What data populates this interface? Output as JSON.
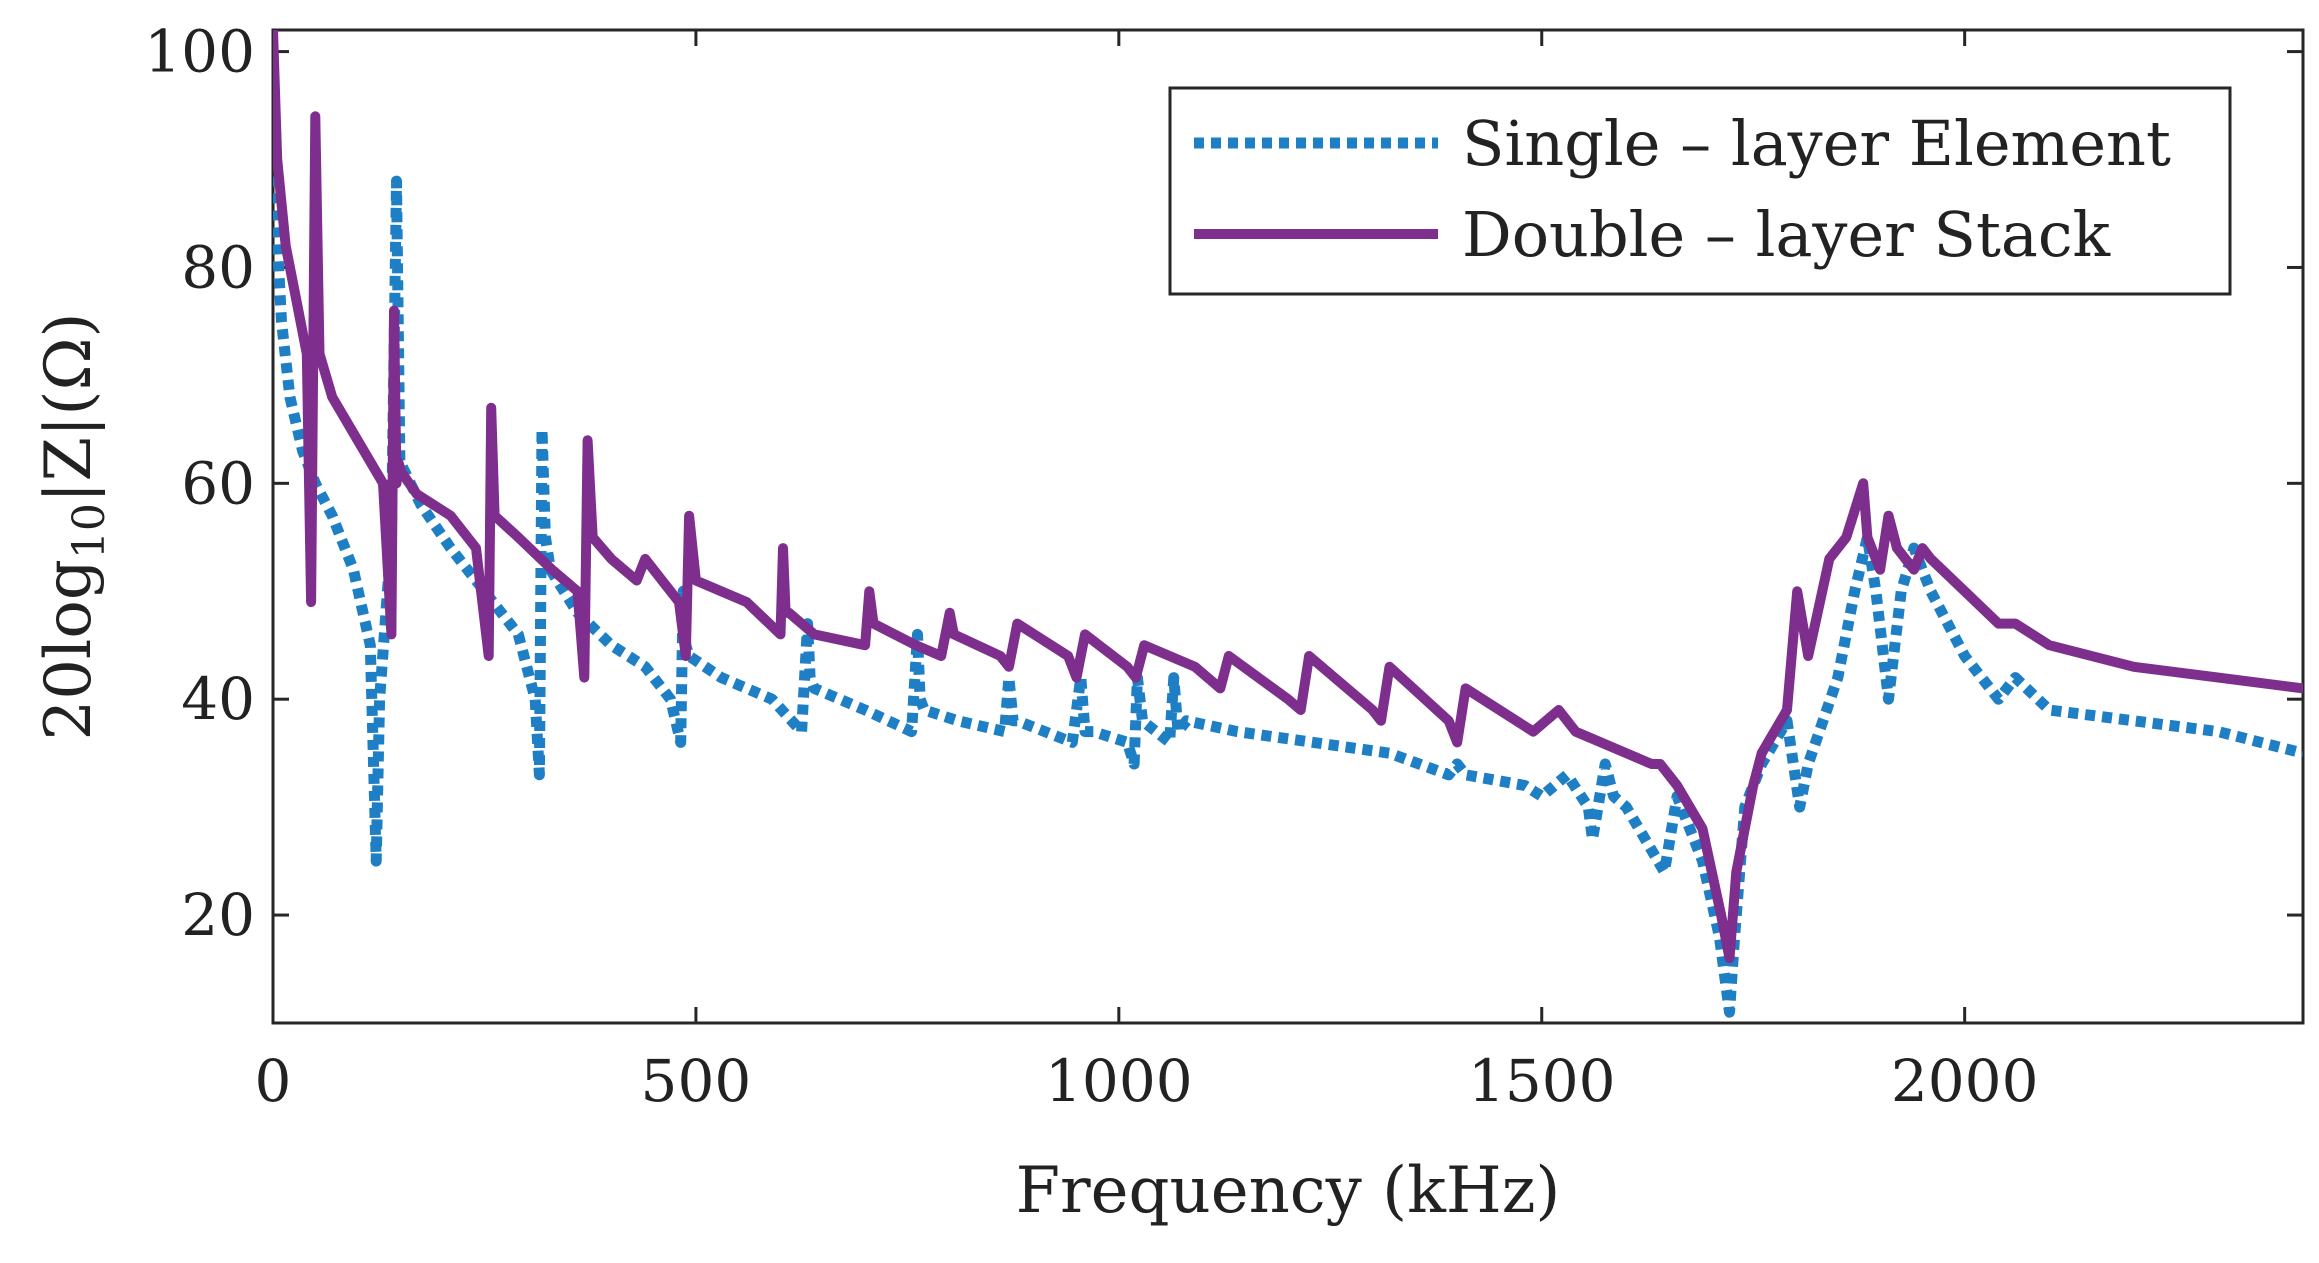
{
  "chart_data": {
    "type": "line",
    "title": "",
    "xlabel": "Frequency (kHz)",
    "ylabel": "20log10|Z|(Ω)",
    "ylabel_parts": {
      "pre": "20log",
      "sub": "10",
      "post": "|Z|(Ω)"
    },
    "xlim": [
      0,
      2400
    ],
    "ylim": [
      10,
      102
    ],
    "xticks": [
      0,
      500,
      1000,
      1500,
      2000
    ],
    "xtick_labels": [
      "0",
      "500",
      "1000",
      "1500",
      "2000"
    ],
    "yticks": [
      20,
      40,
      60,
      80,
      100
    ],
    "ytick_labels": [
      "20",
      "40",
      "60",
      "80",
      "100"
    ],
    "grid": false,
    "legend_position": "top-right",
    "series": [
      {
        "name": "Single – layer Element",
        "label_parts": [
          "Single",
          "–",
          "layer Element"
        ],
        "color": "#1f7fc4",
        "style": "dotted",
        "x": [
          0,
          10,
          20,
          35,
          50,
          70,
          95,
          115,
          122,
          126,
          140,
          146,
          150,
          175,
          210,
          250,
          290,
          310,
          315,
          318,
          322,
          328,
          360,
          400,
          440,
          470,
          482,
          485,
          488,
          492,
          530,
          590,
          625,
          632,
          635,
          640,
          700,
          755,
          762,
          765,
          770,
          810,
          865,
          870,
          875,
          880,
          945,
          955,
          960,
          970,
          1010,
          1018,
          1022,
          1028,
          1060,
          1065,
          1070,
          1080,
          1140,
          1230,
          1320,
          1390,
          1400,
          1410,
          1480,
          1500,
          1530,
          1555,
          1560,
          1575,
          1585,
          1600,
          1630,
          1645,
          1660,
          1690,
          1710,
          1722,
          1728,
          1740,
          1760,
          1790,
          1805,
          1815,
          1850,
          1870,
          1885,
          1895,
          1910,
          1925,
          1940,
          1960,
          2000,
          2040,
          2060,
          2100,
          2200,
          2300,
          2400
        ],
        "y": [
          90,
          75,
          68,
          63,
          60,
          57,
          52,
          45,
          25,
          40,
          55,
          88,
          62,
          58,
          54,
          50,
          46,
          40,
          33,
          65,
          55,
          52,
          48,
          45,
          43,
          40,
          36,
          50,
          45,
          44,
          42,
          40,
          37,
          47,
          42,
          41,
          39,
          37,
          46,
          40,
          39,
          38,
          37,
          42,
          38,
          38,
          36,
          42,
          37,
          37,
          36,
          34,
          42,
          38,
          36,
          42,
          37,
          38,
          37,
          36,
          35,
          33,
          34,
          33,
          32,
          31,
          33,
          30,
          27,
          34,
          31,
          30,
          26,
          24,
          31,
          25,
          18,
          11,
          18,
          30,
          34,
          38,
          30,
          34,
          42,
          50,
          55,
          50,
          40,
          50,
          54,
          50,
          44,
          40,
          42,
          39,
          38,
          37,
          35
        ]
      },
      {
        "name": "Double – layer Stack",
        "label_parts": [
          "Double",
          "–",
          "layer Stack"
        ],
        "color": "#7e2f8e",
        "style": "solid",
        "x": [
          0,
          5,
          15,
          30,
          40,
          45,
          50,
          55,
          70,
          100,
          130,
          140,
          143,
          146,
          148,
          152,
          170,
          210,
          240,
          255,
          258,
          262,
          290,
          330,
          360,
          368,
          372,
          378,
          400,
          430,
          440,
          450,
          480,
          488,
          492,
          500,
          560,
          600,
          603,
          606,
          610,
          640,
          700,
          705,
          710,
          760,
          790,
          800,
          805,
          860,
          870,
          880,
          940,
          950,
          960,
          1010,
          1020,
          1030,
          1090,
          1120,
          1130,
          1200,
          1215,
          1225,
          1300,
          1310,
          1320,
          1390,
          1400,
          1410,
          1490,
          1520,
          1540,
          1600,
          1630,
          1640,
          1660,
          1690,
          1712,
          1722,
          1730,
          1750,
          1760,
          1790,
          1802,
          1815,
          1840,
          1860,
          1880,
          1885,
          1900,
          1910,
          1920,
          1940,
          1950,
          1960,
          2000,
          2040,
          2060,
          2100,
          2200,
          2300,
          2400
        ],
        "y": [
          102,
          90,
          82,
          76,
          72,
          49,
          94,
          72,
          68,
          64,
          60,
          46,
          76,
          60,
          62,
          61,
          59,
          57,
          54,
          44,
          67,
          57,
          55,
          52,
          50,
          42,
          64,
          55,
          53,
          51,
          53,
          52,
          49,
          44,
          57,
          51,
          49,
          46,
          54,
          48,
          48,
          46,
          45,
          50,
          47,
          45,
          44,
          48,
          46,
          44,
          43,
          47,
          44,
          42,
          46,
          43,
          42,
          45,
          43,
          41,
          44,
          40,
          39,
          44,
          39,
          38,
          43,
          38,
          36,
          41,
          37,
          39,
          37,
          35,
          34,
          34,
          32,
          28,
          20,
          16,
          24,
          32,
          35,
          39,
          50,
          44,
          53,
          55,
          60,
          55,
          52,
          57,
          54,
          52,
          54,
          53,
          50,
          47,
          47,
          45,
          43,
          42,
          41
        ]
      }
    ]
  }
}
